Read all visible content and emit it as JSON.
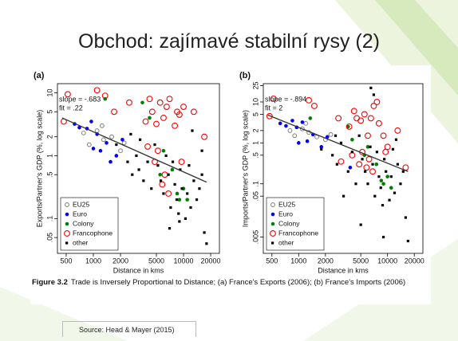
{
  "slide": {
    "title": "Obchod: zajímavé stabilní rysy (2)",
    "caption_label": "Figure 3.2",
    "caption": "Trade is Inversely Proportional to Distance; (a) France's Exports (2006); (b) France's Imports (2006)",
    "source": "Source: Head & Mayer (2015)"
  },
  "chart_data": [
    {
      "type": "scatter",
      "title": "(a)",
      "x_label": "Distance in kms",
      "y_label": "Exports/Partner's GDP (%, log scale)",
      "annotations": [
        "slope = -.683",
        "fit = .22"
      ],
      "xscale": "log",
      "yscale": "log",
      "legend": "lower left",
      "xlim": [
        400,
        25000
      ],
      "ylim": [
        0.028,
        14
      ],
      "xticks": [
        500,
        1000,
        2000,
        5000,
        10000,
        20000
      ],
      "yticks": [
        {
          "value": 0.05,
          "label": ".05"
        },
        {
          "value": 0.1,
          "label": ".1"
        },
        {
          "value": 0.5,
          "label": ".5"
        },
        1,
        2,
        5,
        10
      ],
      "fit_line": {
        "x": [
          450,
          18000
        ],
        "values": [
          4.0,
          0.38
        ],
        "color": "#333333"
      },
      "series": [
        {
          "name": "EU25",
          "color": "#888888",
          "marker": "circle-open",
          "x": [
            780,
            900,
            1100,
            1300,
            1600,
            2000,
            2200,
            1250
          ],
          "values": [
            2.3,
            1.5,
            2.5,
            1.8,
            2.0,
            1.2,
            1.6,
            3.0
          ]
        },
        {
          "name": "Euro",
          "color": "#0000ff",
          "marker": "circle",
          "x": [
            620,
            700,
            850,
            950,
            1100,
            1000,
            1200,
            1400,
            1800,
            2100,
            1550
          ],
          "values": [
            3.2,
            2.8,
            2.7,
            3.5,
            2.2,
            1.3,
            1.2,
            1.6,
            1.0,
            1.8,
            0.8
          ]
        },
        {
          "name": "Colony",
          "color": "#008000",
          "marker": "circle",
          "x": [
            1350,
            4200,
            6000,
            7500,
            9000,
            10000,
            11000,
            5500,
            3500,
            8500
          ],
          "values": [
            8,
            4,
            1.2,
            0.6,
            0.2,
            0.3,
            0.2,
            0.5,
            7,
            0.25
          ]
        },
        {
          "name": "Francophone",
          "color": "#ff0000",
          "marker": "circle-open",
          "x": [
            470,
            520,
            1100,
            1350,
            1700,
            2500,
            3800,
            4200,
            4500,
            5000,
            5500,
            6000,
            6500,
            7000,
            8000,
            8500,
            9000,
            10000,
            13000,
            4800,
            5800,
            6200,
            6800,
            5200,
            4000,
            9500,
            17000
          ],
          "values": [
            3.5,
            9.5,
            11,
            9,
            5,
            7,
            3.5,
            8,
            5,
            3.2,
            7,
            4,
            6,
            8,
            3,
            5,
            4.5,
            6,
            5,
            0.8,
            0.35,
            0.5,
            0.25,
            1.2,
            1.4,
            0.8,
            2
          ]
        },
        {
          "name": "other",
          "color": "#000000",
          "marker": "square",
          "x": [
            1800,
            2400,
            2700,
            3000,
            3200,
            3600,
            4000,
            4400,
            4800,
            5200,
            5600,
            6000,
            6400,
            6800,
            7200,
            7600,
            8000,
            8400,
            8800,
            9200,
            9600,
            10500,
            11000,
            12000,
            13000,
            14000,
            15000,
            16000,
            17000,
            18000,
            12500,
            9000,
            7000,
            11500,
            2600,
            3300,
            16000
          ],
          "values": [
            1.5,
            0.8,
            0.5,
            1.0,
            0.6,
            0.4,
            0.8,
            0.3,
            1.5,
            0.7,
            0.4,
            0.25,
            1.0,
            0.5,
            0.15,
            0.8,
            0.35,
            0.2,
            0.12,
            0.6,
            0.3,
            0.1,
            0.25,
            0.15,
            0.4,
            0.2,
            0.3,
            0.5,
            0.06,
            0.04,
            2.5,
            0.09,
            0.07,
            0.7,
            2.2,
            1.8,
            1.2
          ]
        }
      ]
    },
    {
      "type": "scatter",
      "title": "(b)",
      "x_label": "Distance in kms",
      "y_label": "Imports/Partner's GDP (%, log scale)",
      "annotations": [
        "slope = -.894",
        "fit = 2"
      ],
      "xscale": "log",
      "yscale": "log",
      "legend": "lower left",
      "xlim": [
        400,
        25000
      ],
      "ylim": [
        0.002,
        28
      ],
      "xticks": [
        500,
        1000,
        2000,
        5000,
        10000,
        20000
      ],
      "yticks": [
        {
          "value": 0.005,
          "label": ".005"
        },
        {
          "value": 0.05,
          "label": ".05"
        },
        {
          "value": 0.1,
          "label": ".1"
        },
        {
          "value": 0.5,
          "label": ".5"
        },
        1,
        2,
        5,
        10,
        25
      ],
      "fit_line": {
        "x": [
          450,
          17000
        ],
        "values": [
          4.8,
          0.2
        ],
        "color": "#333333"
      },
      "series": [
        {
          "name": "EU25",
          "color": "#888888",
          "marker": "circle-open",
          "x": [
            800,
            900,
            1100,
            1300,
            1600,
            2000,
            2300,
            1200
          ],
          "values": [
            2.0,
            1.5,
            2.2,
            1.8,
            1.4,
            1.2,
            1.6,
            3.0
          ]
        },
        {
          "name": "Euro",
          "color": "#0000ff",
          "marker": "circle",
          "x": [
            620,
            720,
            850,
            950,
            1100,
            1000,
            1250,
            1450,
            1800,
            2100,
            3800
          ],
          "values": [
            3.0,
            2.6,
            3.5,
            2.4,
            3.2,
            1.0,
            1.1,
            1.6,
            0.8,
            1.4,
            0.25
          ]
        },
        {
          "name": "Colony",
          "color": "#008000",
          "marker": "circle",
          "x": [
            1350,
            4000,
            6000,
            7500,
            9000,
            10000,
            11000,
            5500,
            3600,
            8500
          ],
          "values": [
            4,
            1.2,
            0.8,
            0.3,
            0.1,
            0.15,
            0.08,
            0.5,
            2.5,
            0.12
          ]
        },
        {
          "name": "Francophone",
          "color": "#ff0000",
          "marker": "circle-open",
          "x": [
            470,
            520,
            1300,
            1500,
            2800,
            3700,
            4200,
            4500,
            5000,
            5500,
            6000,
            6500,
            7000,
            7600,
            8000,
            9000,
            10000,
            13000,
            4800,
            5800,
            6200,
            6800,
            5200,
            4000,
            9500,
            16000,
            3000
          ],
          "values": [
            4.5,
            12,
            11,
            8,
            4,
            2.5,
            6,
            4,
            3.5,
            5,
            1.5,
            4,
            8,
            10,
            3,
            1.5,
            0.8,
            2,
            0.3,
            0.25,
            0.4,
            0.2,
            0.6,
            0.5,
            0.6,
            0.25,
            0.35
          ]
        },
        {
          "name": "other",
          "color": "#000000",
          "marker": "square",
          "x": [
            1800,
            2400,
            2700,
            3000,
            3200,
            3600,
            4000,
            4400,
            4800,
            5200,
            5600,
            6000,
            6400,
            6800,
            7200,
            7600,
            8000,
            8400,
            8800,
            9200,
            9600,
            10500,
            11000,
            12000,
            13000,
            14000,
            15000,
            16000,
            17000,
            6500,
            7000,
            9000,
            5000,
            11500,
            2600,
            12500
          ],
          "values": [
            0.7,
            0.5,
            0.3,
            1.0,
            0.05,
            0.2,
            0.6,
            0.1,
            1.5,
            0.4,
            0.2,
            0.1,
            0.8,
            0.3,
            0.05,
            0.6,
            0.15,
            0.08,
            0.03,
            0.4,
            0.2,
            0.04,
            0.15,
            0.06,
            0.3,
            0.1,
            0.2,
            0.015,
            0.004,
            22,
            15,
            0.005,
            0.01,
            0.7,
            1.5,
            1.2
          ]
        }
      ]
    }
  ]
}
